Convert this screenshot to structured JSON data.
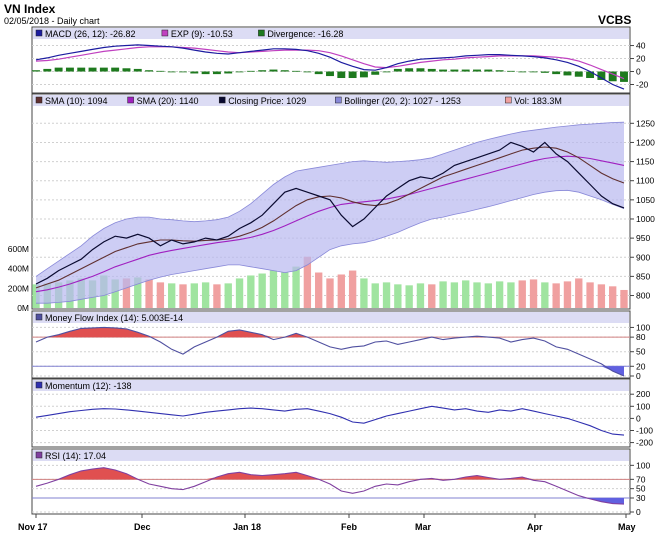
{
  "header": {
    "title": "VN Index",
    "subtitle": "02/05/2018 - Daily chart",
    "brand": "VCBS"
  },
  "colors": {
    "legend_bg": "#dcdcf4",
    "macd": "#1c1ca0",
    "exp": "#c040c0",
    "divergence": "#1e7a1e",
    "sma10": "#603030",
    "sma20": "#a020c0",
    "close": "#0a0a30",
    "band_fill": "#b8b8f0",
    "band_line": "#8888d8",
    "vol_up": "#a0e4a0",
    "vol_down": "#f0a0a0",
    "mfi": "#5050a0",
    "mfi_fill_high": "#e05050",
    "mfi_fill_low": "#6060e0",
    "momentum": "#3030b0",
    "rsi": "#8040a0"
  },
  "chart_data": [
    {
      "type": "line",
      "name": "MACD panel",
      "legend": [
        {
          "label": "MACD (26, 12): -26.82",
          "color": "#1c1ca0"
        },
        {
          "label": "EXP (9): -10.53",
          "color": "#c040c0"
        },
        {
          "label": "Divergence: -16.28",
          "color": "#1e7a1e"
        }
      ],
      "yticks": [
        40,
        20,
        0,
        -20
      ],
      "ylim": [
        -30,
        47
      ],
      "series": [
        {
          "name": "MACD",
          "values": [
            18,
            21,
            25,
            28,
            31,
            34,
            37,
            39,
            40,
            41,
            40,
            39,
            38,
            36,
            33,
            30,
            28,
            27,
            29,
            31,
            33,
            35,
            35,
            34,
            32,
            28,
            22,
            14,
            8,
            3,
            2,
            6,
            12,
            16,
            19,
            20,
            21,
            22,
            24,
            25,
            26,
            26,
            25,
            24,
            23,
            21,
            18,
            14,
            8,
            0,
            -10,
            -20,
            -27
          ]
        },
        {
          "name": "EXP (9)",
          "values": [
            16,
            17,
            19,
            22,
            25,
            28,
            31,
            33,
            35,
            37,
            38,
            38,
            38,
            37,
            36,
            34,
            32,
            30,
            29,
            30,
            31,
            32,
            33,
            33,
            33,
            32,
            29,
            24,
            18,
            12,
            7,
            6,
            8,
            11,
            14,
            16,
            18,
            19,
            21,
            22,
            23,
            24,
            24,
            24,
            24,
            23,
            22,
            20,
            16,
            10,
            3,
            -4,
            -11
          ]
        },
        {
          "name": "Divergence",
          "type": "bar",
          "values": [
            2,
            4,
            6,
            6,
            6,
            6,
            6,
            6,
            5,
            4,
            2,
            1,
            0,
            -1,
            -3,
            -4,
            -4,
            -3,
            0,
            1,
            2,
            3,
            2,
            1,
            -1,
            -4,
            -7,
            -10,
            -10,
            -9,
            -5,
            0,
            4,
            5,
            5,
            4,
            3,
            3,
            3,
            3,
            3,
            2,
            1,
            0,
            -1,
            -2,
            -4,
            -6,
            -8,
            -10,
            -13,
            -15,
            -16
          ]
        }
      ]
    },
    {
      "type": "line",
      "name": "Price panel",
      "legend": [
        {
          "label": "SMA (10): 1094",
          "color": "#603030"
        },
        {
          "label": "SMA (20): 1140",
          "color": "#a020c0"
        },
        {
          "label": "Closing Price: 1029",
          "color": "#0a0a30"
        },
        {
          "label": "Bollinger (20, 2): 1027 - 1253",
          "color": "#8888d8"
        },
        {
          "label": "Vol: 183.3M",
          "color": "#f0a0a0"
        }
      ],
      "yticks": [
        1250,
        1200,
        1150,
        1100,
        1050,
        1000,
        950,
        900,
        850,
        800
      ],
      "ylim": [
        770,
        1290
      ],
      "volume_ticks": [
        "600M",
        "400M",
        "200M",
        "0M"
      ],
      "volume_max": 700,
      "series": [
        {
          "name": "Closing Price",
          "values": [
            830,
            845,
            865,
            880,
            895,
            920,
            940,
            955,
            950,
            960,
            950,
            930,
            945,
            935,
            940,
            950,
            945,
            955,
            975,
            990,
            1010,
            1040,
            1070,
            1080,
            1070,
            1060,
            1050,
            1010,
            980,
            1000,
            1030,
            1060,
            1080,
            1100,
            1110,
            1105,
            1120,
            1140,
            1150,
            1160,
            1170,
            1180,
            1200,
            1190,
            1175,
            1200,
            1170,
            1150,
            1120,
            1090,
            1060,
            1040,
            1029
          ]
        },
        {
          "name": "SMA (10)",
          "values": [
            820,
            830,
            840,
            855,
            870,
            885,
            900,
            915,
            925,
            935,
            940,
            945,
            945,
            943,
            942,
            944,
            945,
            948,
            955,
            965,
            978,
            995,
            1015,
            1035,
            1050,
            1058,
            1060,
            1055,
            1045,
            1038,
            1035,
            1040,
            1050,
            1065,
            1080,
            1095,
            1110,
            1120,
            1130,
            1140,
            1150,
            1160,
            1170,
            1180,
            1185,
            1188,
            1185,
            1175,
            1160,
            1140,
            1120,
            1105,
            1094
          ]
        },
        {
          "name": "SMA (20)",
          "values": [
            810,
            815,
            822,
            830,
            840,
            850,
            862,
            875,
            885,
            895,
            905,
            912,
            918,
            923,
            928,
            933,
            938,
            942,
            946,
            952,
            960,
            970,
            982,
            995,
            1008,
            1020,
            1030,
            1038,
            1042,
            1045,
            1048,
            1052,
            1058,
            1064,
            1072,
            1080,
            1088,
            1096,
            1104,
            1112,
            1120,
            1128,
            1136,
            1144,
            1152,
            1158,
            1162,
            1164,
            1162,
            1158,
            1152,
            1146,
            1140
          ]
        },
        {
          "name": "Bollinger upper",
          "values": [
            850,
            870,
            890,
            910,
            930,
            955,
            975,
            990,
            1000,
            1005,
            1005,
            1000,
            998,
            995,
            993,
            995,
            998,
            1005,
            1020,
            1040,
            1065,
            1090,
            1110,
            1125,
            1130,
            1135,
            1140,
            1145,
            1150,
            1152,
            1150,
            1148,
            1150,
            1152,
            1155,
            1160,
            1170,
            1180,
            1190,
            1200,
            1208,
            1215,
            1222,
            1228,
            1232,
            1236,
            1240,
            1243,
            1246,
            1248,
            1250,
            1252,
            1253
          ]
        },
        {
          "name": "Bollinger lower",
          "values": [
            780,
            780,
            782,
            785,
            790,
            795,
            800,
            810,
            820,
            830,
            840,
            848,
            855,
            860,
            865,
            870,
            875,
            880,
            880,
            875,
            870,
            865,
            860,
            865,
            880,
            900,
            920,
            930,
            935,
            938,
            945,
            955,
            965,
            978,
            990,
            1000,
            1005,
            1012,
            1018,
            1025,
            1032,
            1040,
            1048,
            1056,
            1064,
            1070,
            1074,
            1075,
            1070,
            1060,
            1050,
            1038,
            1027
          ]
        }
      ],
      "volume": [
        240,
        250,
        260,
        280,
        300,
        280,
        330,
        290,
        300,
        310,
        290,
        260,
        250,
        240,
        250,
        260,
        240,
        250,
        300,
        330,
        350,
        380,
        360,
        420,
        520,
        360,
        300,
        340,
        380,
        300,
        250,
        260,
        240,
        230,
        250,
        240,
        270,
        260,
        280,
        260,
        250,
        270,
        260,
        280,
        290,
        260,
        250,
        270,
        300,
        260,
        240,
        220,
        183
      ]
    },
    {
      "type": "line",
      "name": "Money Flow Index panel",
      "legend": [
        {
          "label": "Money Flow Index (14): 5.003E-14",
          "color": "#5050a0"
        }
      ],
      "yticks": [
        100,
        80,
        50,
        20,
        0
      ],
      "ylim": [
        0,
        105
      ],
      "reference_lines": [
        80,
        20
      ],
      "series": [
        {
          "name": "Money Flow Index",
          "values": [
            70,
            80,
            85,
            92,
            98,
            99,
            100,
            99,
            97,
            90,
            82,
            70,
            55,
            45,
            60,
            70,
            80,
            92,
            95,
            90,
            85,
            75,
            80,
            88,
            80,
            70,
            60,
            55,
            60,
            62,
            70,
            72,
            65,
            70,
            75,
            80,
            75,
            78,
            80,
            82,
            80,
            78,
            70,
            75,
            78,
            72,
            60,
            55,
            45,
            35,
            25,
            10,
            0
          ]
        }
      ]
    },
    {
      "type": "line",
      "name": "Momentum panel",
      "legend": [
        {
          "label": "Momentum (12): -138",
          "color": "#3030b0"
        }
      ],
      "yticks": [
        200,
        100,
        0,
        -100,
        -200
      ],
      "ylim": [
        -220,
        210
      ],
      "series": [
        {
          "name": "Momentum",
          "values": [
            10,
            25,
            40,
            55,
            65,
            75,
            80,
            78,
            70,
            60,
            50,
            40,
            30,
            20,
            35,
            50,
            60,
            70,
            80,
            85,
            80,
            70,
            60,
            75,
            80,
            60,
            40,
            10,
            -30,
            -40,
            -10,
            20,
            40,
            60,
            80,
            100,
            85,
            70,
            80,
            60,
            50,
            70,
            60,
            80,
            60,
            40,
            20,
            0,
            -30,
            -60,
            -100,
            -130,
            -138
          ]
        }
      ]
    },
    {
      "type": "line",
      "name": "RSI panel",
      "legend": [
        {
          "label": "RSI (14): 17.04",
          "color": "#8040a0"
        }
      ],
      "yticks": [
        100,
        70,
        50,
        30,
        0
      ],
      "ylim": [
        0,
        105
      ],
      "reference_lines": [
        70,
        30
      ],
      "series": [
        {
          "name": "RSI",
          "values": [
            55,
            62,
            70,
            80,
            88,
            92,
            95,
            90,
            82,
            70,
            60,
            55,
            50,
            48,
            55,
            65,
            75,
            82,
            85,
            80,
            78,
            80,
            82,
            85,
            78,
            70,
            60,
            45,
            40,
            45,
            55,
            60,
            58,
            65,
            70,
            72,
            68,
            70,
            75,
            78,
            74,
            70,
            72,
            75,
            68,
            65,
            55,
            45,
            35,
            28,
            22,
            18,
            17
          ]
        }
      ]
    }
  ],
  "x_axis": {
    "labels": [
      "Nov 17",
      "Dec",
      "Jan 18",
      "Feb",
      "Mar",
      "Apr",
      "May"
    ]
  }
}
